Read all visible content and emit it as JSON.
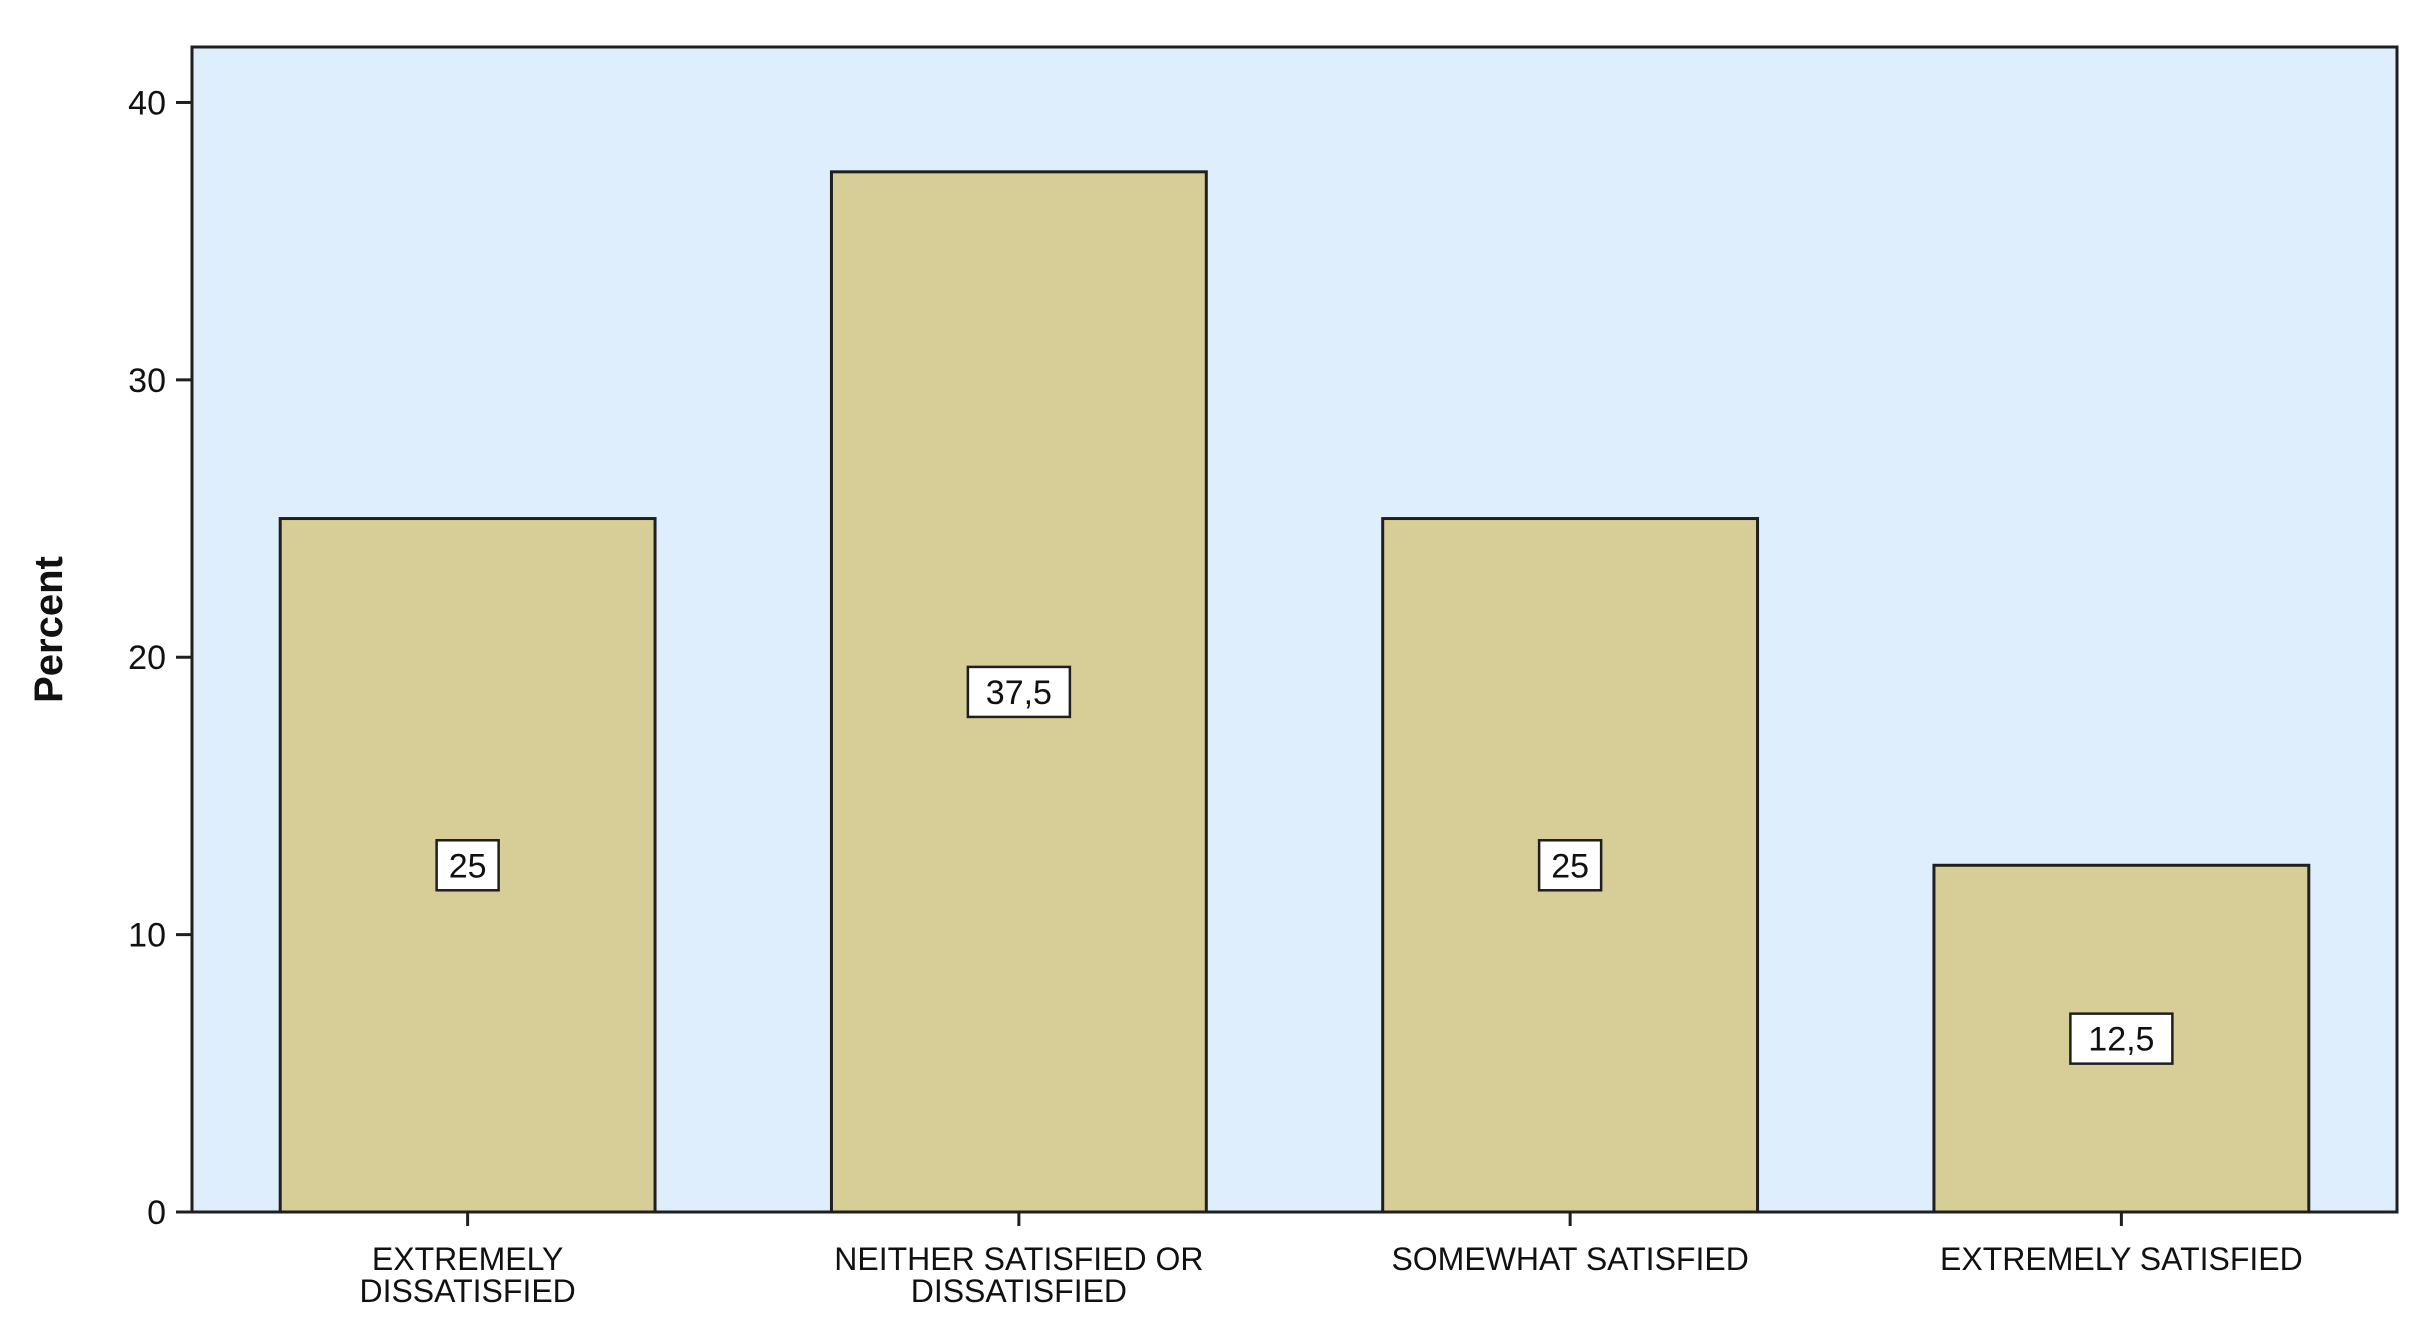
{
  "chart_data": {
    "type": "bar",
    "categories": [
      [
        "EXTREMELY",
        "DISSATISFIED"
      ],
      [
        "NEITHER SATISFIED OR",
        "DISSATISFIED"
      ],
      [
        "SOMEWHAT SATISFIED"
      ],
      [
        "EXTREMELY SATISFIED"
      ]
    ],
    "values": [
      25,
      37.5,
      25,
      12.5
    ],
    "data_labels": [
      "25",
      "37,5",
      "25",
      "12,5"
    ],
    "title": "",
    "xlabel": "",
    "ylabel": "Percent",
    "ylim": [
      0,
      42
    ],
    "yticks": [
      0,
      10,
      20,
      30,
      40
    ],
    "grid": false,
    "colors": {
      "plot_background": "#deeefd",
      "bar_fill": "#d6ce96",
      "bar_stroke": "#1f1f1f",
      "axis": "#1f1f1f",
      "label_box_fill": "#ffffff",
      "text": "#111111"
    }
  }
}
